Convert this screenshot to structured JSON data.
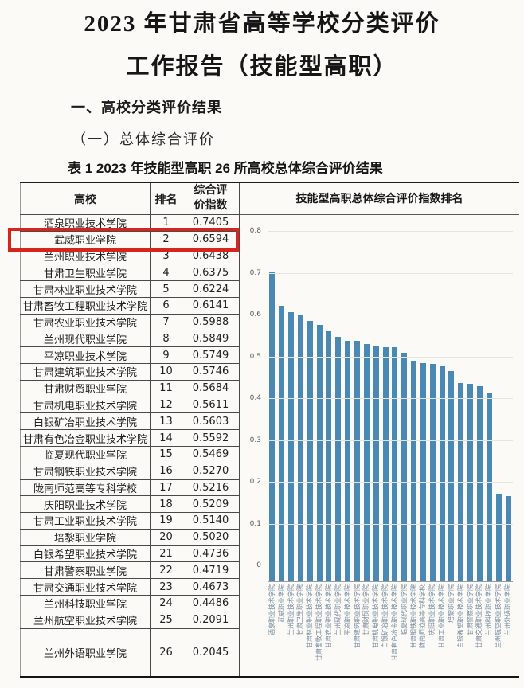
{
  "page": {
    "title_line1": "2023 年甘肃省高等学校分类评价",
    "title_line2": "工作报告（技能型高职）",
    "section_heading": "一、高校分类评价结果",
    "subsection_heading": "（一）总体综合评价",
    "table_caption": "表 1  2023 年技能型高职 26 所高校总体综合评价结果"
  },
  "table": {
    "headers": {
      "college": "高校",
      "rank": "排名",
      "index": "综合评价指数"
    },
    "rows": [
      {
        "college": "酒泉职业技术学院",
        "rank": "1",
        "index": "0.7405"
      },
      {
        "college": "武威职业学院",
        "rank": "2",
        "index": "0.6594"
      },
      {
        "college": "兰州职业技术学院",
        "rank": "3",
        "index": "0.6438"
      },
      {
        "college": "甘肃卫生职业学院",
        "rank": "4",
        "index": "0.6375"
      },
      {
        "college": "甘肃林业职业技术学院",
        "rank": "5",
        "index": "0.6224"
      },
      {
        "college": "甘肃畜牧工程职业技术学院",
        "rank": "6",
        "index": "0.6141"
      },
      {
        "college": "甘肃农业职业技术学院",
        "rank": "7",
        "index": "0.5988"
      },
      {
        "college": "兰州现代职业学院",
        "rank": "8",
        "index": "0.5849"
      },
      {
        "college": "平凉职业技术学院",
        "rank": "9",
        "index": "0.5749"
      },
      {
        "college": "甘肃建筑职业技术学院",
        "rank": "10",
        "index": "0.5746"
      },
      {
        "college": "甘肃财贸职业学院",
        "rank": "11",
        "index": "0.5684"
      },
      {
        "college": "甘肃机电职业技术学院",
        "rank": "12",
        "index": "0.5611"
      },
      {
        "college": "白银矿冶职业技术学院",
        "rank": "13",
        "index": "0.5603"
      },
      {
        "college": "甘肃有色冶金职业技术学院",
        "rank": "14",
        "index": "0.5592"
      },
      {
        "college": "临夏现代职业学院",
        "rank": "15",
        "index": "0.5469"
      },
      {
        "college": "甘肃钢铁职业技术学院",
        "rank": "16",
        "index": "0.5270"
      },
      {
        "college": "陇南师范高等专科学校",
        "rank": "17",
        "index": "0.5216"
      },
      {
        "college": "庆阳职业技术学院",
        "rank": "18",
        "index": "0.5209"
      },
      {
        "college": "甘肃工业职业技术学院",
        "rank": "19",
        "index": "0.5140"
      },
      {
        "college": "培黎职业学院",
        "rank": "20",
        "index": "0.5020"
      },
      {
        "college": "白银希望职业技术学院",
        "rank": "21",
        "index": "0.4736"
      },
      {
        "college": "甘肃警察职业学院",
        "rank": "22",
        "index": "0.4719"
      },
      {
        "college": "甘肃交通职业技术学院",
        "rank": "23",
        "index": "0.4673"
      },
      {
        "college": "兰州科技职业学院",
        "rank": "24",
        "index": "0.4486"
      },
      {
        "college": "兰州航空职业技术学院",
        "rank": "25",
        "index": "0.2091"
      },
      {
        "college": "兰州外语职业学院",
        "rank": "26",
        "index": "0.2045",
        "tall": true
      }
    ],
    "highlight": {
      "highlighted_college": "武威职业学院",
      "highlighted_rank": "2",
      "color": "#d6251d"
    }
  },
  "chart_data": {
    "type": "bar",
    "title": "技能型高职总体综合评价指数排名",
    "categories": [
      "酒泉职业技术学院",
      "武威职业学院",
      "兰州职业技术学院",
      "甘肃卫生职业学院",
      "甘肃林业职业技术学院",
      "甘肃畜牧工程职业技术学院",
      "甘肃农业职业技术学院",
      "兰州现代职业学院",
      "平凉职业技术学院",
      "甘肃建筑职业技术学院",
      "甘肃财贸职业学院",
      "甘肃机电职业技术学院",
      "白银矿冶职业技术学院",
      "甘肃有色冶金职业技术学院",
      "临夏现代职业学院",
      "甘肃钢铁职业技术学院",
      "陇南师范高等专科学校",
      "庆阳职业技术学院",
      "甘肃工业职业技术学院",
      "培黎职业学院",
      "白银希望职业技术学院",
      "甘肃警察职业学院",
      "甘肃交通职业技术学院",
      "兰州科技职业学院",
      "兰州航空职业技术学院",
      "兰州外语职业学院"
    ],
    "values": [
      0.7405,
      0.6594,
      0.6438,
      0.6375,
      0.6224,
      0.6141,
      0.5988,
      0.5849,
      0.5749,
      0.5746,
      0.5684,
      0.5611,
      0.5603,
      0.5592,
      0.5469,
      0.527,
      0.5216,
      0.5209,
      0.514,
      0.502,
      0.4736,
      0.4719,
      0.4673,
      0.4486,
      0.2091,
      0.2045
    ],
    "xlabel": "",
    "ylabel": "",
    "ylim": [
      0,
      0.8
    ],
    "ytick_labels": [
      "0.8",
      "0.7",
      "0.6",
      "0.5",
      "0.4",
      "0.3",
      "0.2",
      "0.1",
      "0"
    ],
    "grid": true,
    "legend": false,
    "bar_color": "#4a89b4"
  }
}
